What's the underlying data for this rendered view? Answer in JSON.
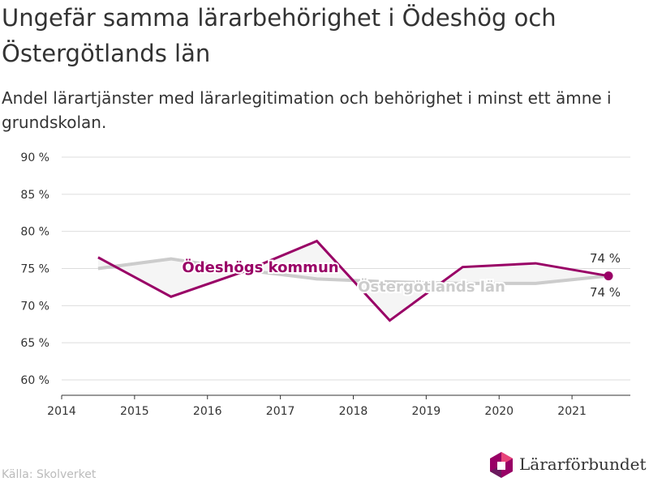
{
  "header": {
    "title": "Ungefär samma lärarbehörighet i Ödeshög och Östergötlands län",
    "subtitle": "Andel lärartjänster med lärarlegitimation och behörighet i minst ett ämne i grundskolan."
  },
  "source": "Källa: Skolverket",
  "logo": {
    "text": "Lärarförbundet"
  },
  "colors": {
    "kommun": "#990066",
    "lan": "#cccccc",
    "grid": "#dddddd",
    "axis": "#333333"
  },
  "chart_data": {
    "type": "line",
    "title": "Ungefär samma lärarbehörighet i Ödeshög och Östergötlands län",
    "subtitle": "Andel lärartjänster med lärarlegitimation och behörighet i minst ett ämne i grundskolan.",
    "xlim": [
      2014,
      2021.8
    ],
    "x_ticks": [
      2014,
      2015,
      2016,
      2017,
      2018,
      2019,
      2020,
      2021
    ],
    "x_tick_labels": [
      "2014",
      "2015",
      "2016",
      "2017",
      "2018",
      "2019",
      "2020",
      "2021"
    ],
    "ylim": [
      58,
      91
    ],
    "y_ticks": [
      60,
      65,
      70,
      75,
      80,
      85,
      90
    ],
    "y_tick_labels": [
      "60 %",
      "65 %",
      "70 %",
      "75 %",
      "80 %",
      "85 %",
      "90 %"
    ],
    "grid": true,
    "x": [
      2014.5,
      2015.5,
      2016.5,
      2017.5,
      2018.5,
      2019.5,
      2020.5,
      2021.5
    ],
    "series": [
      {
        "name": "Östergötlands län",
        "values": [
          75.0,
          76.3,
          74.8,
          73.6,
          73.2,
          73.0,
          73.0,
          74.0
        ],
        "end_label": "74 %"
      },
      {
        "name": "Ödeshögs kommun",
        "values": [
          76.5,
          71.2,
          74.6,
          78.7,
          68.0,
          75.2,
          75.7,
          74.0
        ],
        "end_label": "74 %"
      }
    ]
  }
}
